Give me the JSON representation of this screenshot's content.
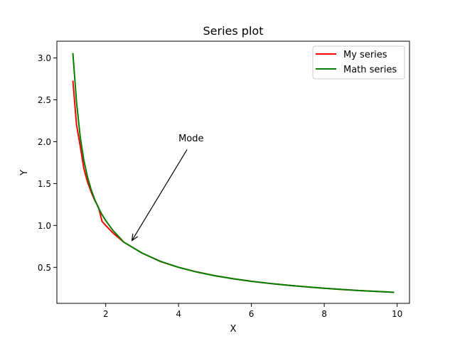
{
  "chart_data": {
    "type": "line",
    "title": "Series plot",
    "xlabel": "X",
    "ylabel": "Y",
    "xlim": [
      0.66,
      10.34
    ],
    "ylim": [
      0.07,
      3.2
    ],
    "xticks": [
      2,
      4,
      6,
      8,
      10
    ],
    "yticks": [
      0.5,
      1.0,
      1.5,
      2.0,
      2.5,
      3.0
    ],
    "xtick_labels": [
      "2",
      "4",
      "6",
      "8",
      "10"
    ],
    "ytick_labels": [
      "0.5",
      "1.0",
      "1.5",
      "2.0",
      "2.5",
      "3.0"
    ],
    "grid": false,
    "legend_position": "top-right",
    "series": [
      {
        "name": "My series",
        "color": "#ff0000",
        "x": [
          1.1,
          1.2,
          1.3,
          1.4,
          1.5,
          1.6,
          1.7,
          1.8,
          1.9,
          2.0,
          2.2,
          2.5,
          3.0,
          3.5,
          4.0,
          4.5,
          5.0,
          5.5,
          6.0,
          6.5,
          7.0,
          7.5,
          8.0,
          8.5,
          9.0,
          9.5,
          9.9
        ],
        "y": [
          2.72,
          2.2,
          1.95,
          1.68,
          1.52,
          1.4,
          1.3,
          1.22,
          1.05,
          1.0,
          0.91,
          0.8,
          0.67,
          0.57,
          0.5,
          0.445,
          0.4,
          0.364,
          0.333,
          0.308,
          0.286,
          0.267,
          0.25,
          0.235,
          0.222,
          0.211,
          0.202
        ]
      },
      {
        "name": "Math series",
        "color": "#008000",
        "x": [
          1.1,
          1.2,
          1.3,
          1.4,
          1.5,
          1.6,
          1.7,
          1.8,
          1.9,
          2.0,
          2.2,
          2.5,
          3.0,
          3.5,
          4.0,
          4.5,
          5.0,
          5.5,
          6.0,
          6.5,
          7.0,
          7.5,
          8.0,
          8.5,
          9.0,
          9.5,
          9.9
        ],
        "y": [
          3.05,
          2.47,
          2.06,
          1.78,
          1.58,
          1.43,
          1.31,
          1.21,
          1.13,
          1.06,
          0.94,
          0.8,
          0.67,
          0.572,
          0.5,
          0.444,
          0.4,
          0.364,
          0.333,
          0.308,
          0.286,
          0.267,
          0.25,
          0.235,
          0.222,
          0.211,
          0.202
        ]
      }
    ],
    "annotations": [
      {
        "text": "Mode",
        "x": 4.0,
        "y": 2.0,
        "arrow_to": [
          2.72,
          0.82
        ]
      }
    ]
  }
}
